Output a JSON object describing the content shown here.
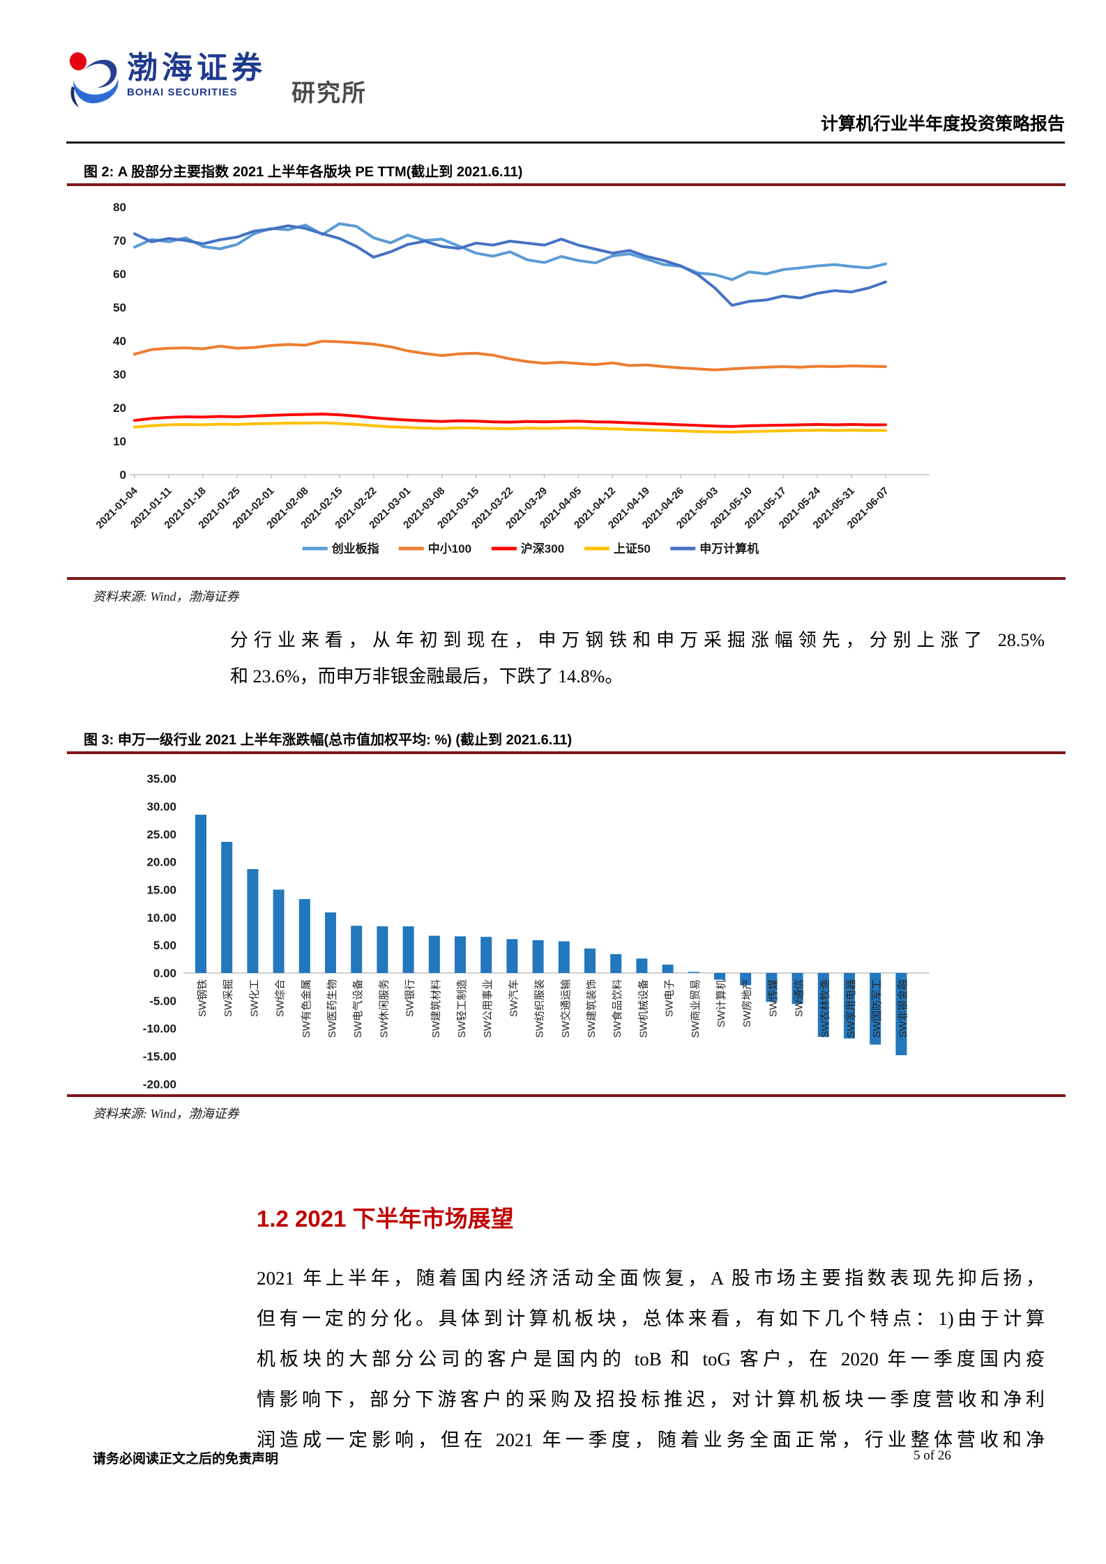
{
  "header": {
    "logo": {
      "brand_cn": "渤海证券",
      "brand_en": "BOHAI SECURITIES",
      "suffix": "研究所"
    },
    "report_title": "计算机行业半年度投资策略报告"
  },
  "figure2": {
    "caption": "图 2: A 股部分主要指数 2021 上半年各版块 PE TTM(截止到 2021.6.11)",
    "source": "资料来源: Wind，渤海证券"
  },
  "paragraph1": {
    "lines": [
      "分行业来看，从年初到现在，申万钢铁和申万采掘涨幅领先，分别上涨了 28.5%",
      "和 23.6%，而申万非银金融最后，下跌了 14.8%。"
    ]
  },
  "figure3": {
    "caption": "图 3: 申万一级行业 2021 上半年涨跌幅(总市值加权平均: %) (截止到 2021.6.11)",
    "source": "资料来源: Wind，渤海证券"
  },
  "section": {
    "heading": "1.2 2021 下半年市场展望",
    "lines": [
      "2021 年上半年，随着国内经济活动全面恢复，A 股市场主要指数表现先抑后扬，",
      "但有一定的分化。具体到计算机板块，总体来看，有如下几个特点：1)由于计算",
      "机板块的大部分公司的客户是国内的 toB 和 toG 客户，在 2020 年一季度国内疫",
      "情影响下，部分下游客户的采购及招投标推迟，对计算机板块一季度营收和净利",
      "润造成一定影响，但在 2021 年一季度，随着业务全面正常，行业整体营收和净"
    ]
  },
  "footer": {
    "disclaimer": "请务必阅读正文之后的免责声明",
    "page_label": "5 of 26"
  },
  "chart_data": [
    {
      "type": "line",
      "title": "A股部分主要指数2021上半年各版块PE TTM(截止到2021.6.11)",
      "xlabel": "",
      "ylabel": "",
      "ylim": [
        0,
        80
      ],
      "yticks": [
        0,
        10,
        20,
        30,
        40,
        50,
        60,
        70,
        80
      ],
      "grid": false,
      "legend_position": "bottom",
      "x_tick_labels": [
        "2021-01-04",
        "2021-01-11",
        "2021-01-18",
        "2021-01-25",
        "2021-02-01",
        "2021-02-08",
        "2021-02-15",
        "2021-02-22",
        "2021-03-01",
        "2021-03-08",
        "2021-03-15",
        "2021-03-22",
        "2021-03-29",
        "2021-04-05",
        "2021-04-12",
        "2021-04-19",
        "2021-04-26",
        "2021-05-03",
        "2021-05-10",
        "2021-05-17",
        "2021-05-24",
        "2021-05-31",
        "2021-06-07"
      ],
      "series": [
        {
          "name": "创业板指",
          "color": "#5B9BD5",
          "values": [
            68.0,
            70.3,
            69.6,
            70.8,
            68.2,
            67.5,
            68.8,
            72.0,
            73.6,
            73.2,
            74.6,
            71.8,
            75.0,
            74.2,
            70.8,
            69.3,
            71.6,
            70.0,
            70.4,
            68.3,
            66.2,
            65.3,
            66.6,
            64.2,
            63.4,
            65.2,
            64.0,
            63.3,
            65.4,
            66.0,
            64.4,
            62.8,
            62.3,
            60.3,
            59.8,
            58.3,
            60.6,
            60.0,
            61.3,
            61.8,
            62.4,
            62.8,
            62.2,
            61.8,
            63.0
          ]
        },
        {
          "name": "中小100",
          "color": "#ED7D31",
          "values": [
            36.0,
            37.4,
            37.8,
            37.9,
            37.6,
            38.4,
            37.8,
            38.0,
            38.6,
            38.9,
            38.7,
            39.9,
            39.7,
            39.4,
            39.0,
            38.2,
            37.0,
            36.2,
            35.6,
            36.1,
            36.3,
            35.7,
            34.6,
            33.8,
            33.3,
            33.6,
            33.2,
            32.9,
            33.4,
            32.6,
            32.8,
            32.3,
            31.9,
            31.6,
            31.3,
            31.6,
            31.9,
            32.1,
            32.3,
            32.1,
            32.4,
            32.3,
            32.5,
            32.4,
            32.3
          ]
        },
        {
          "name": "沪深300",
          "color": "#FF0000",
          "values": [
            16.2,
            16.8,
            17.1,
            17.3,
            17.2,
            17.4,
            17.3,
            17.5,
            17.7,
            17.9,
            18.0,
            18.1,
            17.9,
            17.5,
            17.0,
            16.6,
            16.3,
            16.1,
            15.9,
            16.1,
            16.0,
            15.8,
            15.7,
            15.9,
            15.8,
            15.9,
            16.0,
            15.8,
            15.7,
            15.5,
            15.3,
            15.1,
            14.9,
            14.7,
            14.5,
            14.4,
            14.6,
            14.7,
            14.8,
            14.9,
            15.0,
            14.9,
            15.0,
            14.9,
            14.9
          ]
        },
        {
          "name": "上证50",
          "color": "#FFC000",
          "values": [
            14.2,
            14.6,
            14.9,
            15.0,
            14.9,
            15.1,
            15.0,
            15.2,
            15.3,
            15.4,
            15.4,
            15.5,
            15.3,
            15.0,
            14.6,
            14.3,
            14.1,
            13.9,
            13.8,
            14.0,
            13.9,
            13.8,
            13.7,
            13.9,
            13.8,
            13.9,
            14.0,
            13.8,
            13.7,
            13.5,
            13.4,
            13.2,
            13.1,
            12.9,
            12.8,
            12.7,
            12.9,
            13.0,
            13.1,
            13.2,
            13.3,
            13.2,
            13.3,
            13.2,
            13.2
          ]
        },
        {
          "name": "申万计算机",
          "color": "#4472C4",
          "values": [
            72.0,
            69.6,
            70.6,
            70.0,
            69.0,
            70.2,
            71.0,
            72.8,
            73.4,
            74.4,
            73.6,
            72.0,
            70.6,
            68.2,
            65.0,
            66.6,
            68.8,
            69.8,
            68.2,
            67.6,
            69.2,
            68.6,
            69.8,
            69.2,
            68.6,
            70.4,
            68.6,
            67.4,
            66.2,
            67.0,
            65.2,
            64.0,
            62.4,
            59.8,
            55.8,
            50.6,
            51.8,
            52.2,
            53.4,
            52.8,
            54.2,
            55.0,
            54.6,
            55.8,
            57.6
          ]
        }
      ]
    },
    {
      "type": "bar",
      "title": "申万一级行业2021上半年涨跌幅(总市值加权平均: %)(截止到2021.6.11)",
      "xlabel": "",
      "ylabel": "",
      "ylim": [
        -20,
        35
      ],
      "yticks": [
        35,
        30,
        25,
        20,
        15,
        10,
        5,
        0,
        -5,
        -10,
        -15,
        -20
      ],
      "grid": false,
      "bar_color": "#2277BD",
      "categories": [
        "SW钢铁",
        "SW采掘",
        "SW化工",
        "SW综合",
        "SW有色金属",
        "SW医药生物",
        "SW电气设备",
        "SW休闲服务",
        "SW银行",
        "SW建筑材料",
        "SW轻工制造",
        "SW公用事业",
        "SW汽车",
        "SW纺织服装",
        "SW交通运输",
        "SW建筑装饰",
        "SW食品饮料",
        "SW机械设备",
        "SW电子",
        "SW商业贸易",
        "SW计算机",
        "SW房地产",
        "SW传媒",
        "SW通信",
        "SW农林牧渔",
        "SW家用电器",
        "SW国防军工",
        "SW非银金融"
      ],
      "values": [
        28.5,
        23.6,
        18.7,
        15.0,
        13.3,
        10.9,
        8.5,
        8.4,
        8.4,
        6.7,
        6.6,
        6.5,
        6.1,
        5.9,
        5.7,
        4.4,
        3.4,
        2.6,
        1.5,
        0.2,
        -1.2,
        -2.2,
        -5.2,
        -5.6,
        -11.5,
        -11.8,
        -12.9,
        -14.8
      ]
    }
  ]
}
